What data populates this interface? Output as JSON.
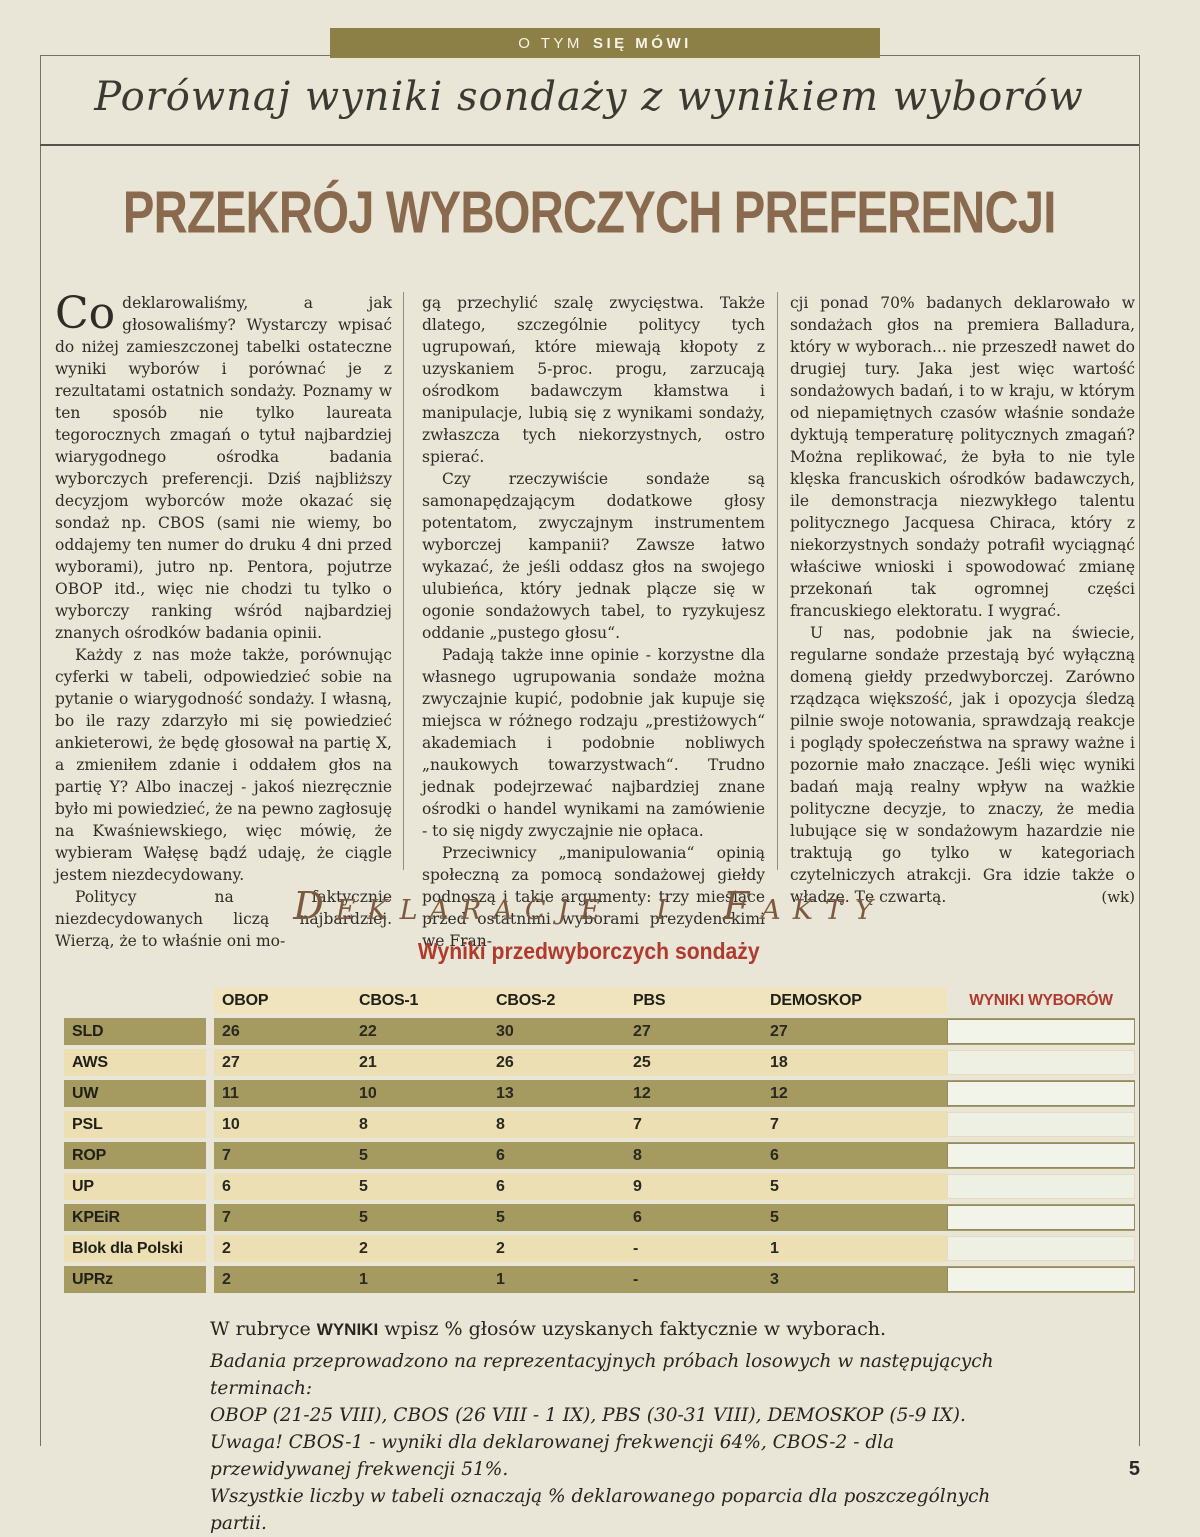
{
  "page": {
    "kicker": {
      "normal": "O TYM",
      "bold": "SIĘ MÓWI"
    },
    "title": "Porównaj wyniki sondaży z wynikiem wyborów",
    "headline": "PRZEKRÓJ WYBORCZYCH PREFERENCJI",
    "page_number": "5"
  },
  "article": {
    "dropcap": "Co",
    "byline": "(wk)",
    "columns": [
      {
        "paragraphs": [
          "deklarowaliśmy, a jak głosowaliśmy? Wystarczy wpisać do niżej zamieszczonej tabelki ostateczne wyniki wyborów i porównać je z rezultatami ostatnich sondaży. Poznamy w ten sposób nie tylko laureata tegorocznych zmagań o tytuł najbardziej wiarygodnego ośrodka badania wyborczych preferencji. Dziś najbliższy decyzjom wyborców może okazać się sondaż np. CBOS (sami nie wiemy, bo oddajemy ten numer do druku 4 dni przed wyborami), jutro np. Pentora, pojutrze OBOP itd., więc nie chodzi tu tylko o wyborczy ranking wśród najbardziej znanych ośrodków badania opinii.",
          "Każdy z nas może także, porównując cyferki w tabeli, odpowiedzieć sobie na pytanie o wiarygodność sondaży. I własną, bo ile razy zdarzyło mi się powiedzieć ankieterowi, że będę głosował na partię X, a zmieniłem zdanie i oddałem głos na partię Y? Albo inaczej - jakoś niezręcznie było mi powiedzieć, że na pewno zagłosuję na Kwaśniewskiego, więc mówię, że wybieram Wałęsę bądź udaję, że ciągle jestem niezdecydowany.",
          "Politycy na faktycznie niezdecydowanych liczą najbardziej. Wierzą, że to właśnie oni mo-"
        ]
      },
      {
        "paragraphs": [
          "gą przechylić szalę zwycięstwa. Także dlatego, szczególnie politycy tych ugrupowań, które miewają kłopoty z uzyskaniem 5-proc. progu, zarzucają ośrodkom badawczym kłamstwa i manipulacje, lubią się z wynikami sondaży, zwłaszcza tych niekorzystnych, ostro spierać.",
          "Czy rzeczywiście sondaże są samonapędzającym dodatkowe głosy potentatom, zwyczajnym instrumentem wyborczej kampanii? Zawsze łatwo wykazać, że jeśli oddasz głos na swojego ulubieńca, który jednak plącze się w ogonie sondażowych tabel, to ryzykujesz oddanie „pustego głosu“.",
          "Padają także inne opinie - korzystne dla własnego ugrupowania sondaże można zwyczajnie kupić, podobnie jak kupuje się miejsca w różnego rodzaju „prestiżowych“ akademiach i podobnie nobliwych „naukowych towarzystwach“. Trudno jednak podejrzewać najbardziej znane ośrodki o handel wynikami na zamówienie - to się nigdy zwyczajnie nie opłaca.",
          "Przeciwnicy „manipulowania“ opinią społeczną za pomocą sondażowej giełdy podnoszą i takie argumenty: trzy miesiące przed ostatnimi wyborami prezydenckimi we Fran-"
        ]
      },
      {
        "paragraphs": [
          "cji ponad 70% badanych deklarowało w sondażach głos na premiera Balladura, który w wyborach... nie przeszedł nawet do drugiej tury. Jaka jest więc wartość sondażowych badań, i to w kraju, w którym od niepamiętnych czasów właśnie sondaże dyktują temperaturę politycznych zmagań? Można replikować, że była to nie tyle klęska francuskich ośrodków badawczych, ile demonstracja niezwykłego talentu politycznego Jacquesa Chiraca, który z niekorzystnych sondaży potrafił wyciągnąć właściwe wnioski i spowodować zmianę przekonań tak ogromnej części francuskiego elektoratu. I wygrać.",
          "U nas, podobnie jak na świecie, regularne sondaże przestają być wyłączną domeną giełdy przedwyborczej. Zarówno rządząca większość, jak i opozycja śledzą pilnie swoje notowania, sprawdzają reakcje i poglądy społeczeństwa na sprawy ważne i pozornie mało znaczące. Jeśli więc wyniki badań mają realny wpływ na ważkie polityczne decyzje, to znaczy, że media lubujące się w sondażowym hazardzie nie traktują go tylko w kategoriach czytelniczych atrakcji. Gra idzie także o władzę. Tę czwartą."
        ]
      }
    ]
  },
  "section": {
    "title": "Deklaracje i Fakty",
    "subtitle": "Wyniki przedwyborczych sondaży"
  },
  "table": {
    "column_headers": [
      "OBOP",
      "CBOS-1",
      "CBOS-2",
      "PBS",
      "DEMOSKOP"
    ],
    "results_header": "WYNIKI WYBORÓW",
    "rows": [
      {
        "party": "SLD",
        "values": [
          "26",
          "22",
          "30",
          "27",
          "27"
        ]
      },
      {
        "party": "AWS",
        "values": [
          "27",
          "21",
          "26",
          "25",
          "18"
        ]
      },
      {
        "party": "UW",
        "values": [
          "11",
          "10",
          "13",
          "12",
          "12"
        ]
      },
      {
        "party": "PSL",
        "values": [
          "10",
          "8",
          "8",
          "7",
          "7"
        ]
      },
      {
        "party": "ROP",
        "values": [
          "7",
          "5",
          "6",
          "8",
          "6"
        ]
      },
      {
        "party": "UP",
        "values": [
          "6",
          "5",
          "6",
          "9",
          "5"
        ]
      },
      {
        "party": "KPEiR",
        "values": [
          "7",
          "5",
          "5",
          "6",
          "5"
        ]
      },
      {
        "party": "Blok dla Polski",
        "values": [
          "2",
          "2",
          "2",
          "-",
          "1"
        ]
      },
      {
        "party": "UPRz",
        "values": [
          "2",
          "1",
          "1",
          "-",
          "3"
        ]
      }
    ]
  },
  "notes": {
    "instruction": {
      "prefix": "W rubryce ",
      "bold": "WYNIKI",
      "suffix": " wpisz % głosów uzyskanych faktycznie w wyborach."
    },
    "italic_lines": [
      "Badania przeprowadzono na reprezentacyjnych próbach losowych w następujących terminach:",
      "OBOP (21-25 VIII), CBOS (26 VIII - 1 IX), PBS (30-31 VIII), DEMOSKOP (5-9 IX).",
      "Uwaga! CBOS-1 - wyniki dla deklarowanej frekwencji 64%, CBOS-2 - dla przewidywanej frekwencji 51%.",
      "Wszystkie liczby w tabeli oznaczają % deklarowanego poparcia dla poszczególnych partii."
    ]
  },
  "colors": {
    "page_background": "#e9e5d7",
    "kicker_olive": "#8d8046",
    "headline_brown": "#8a6a4e",
    "section_brown": "#7d5a3f",
    "accent_red": "#b03a2e",
    "row_olive": "#a59b61",
    "row_cream": "#ebdfb3",
    "header_band_cream": "#f0e4bf"
  }
}
